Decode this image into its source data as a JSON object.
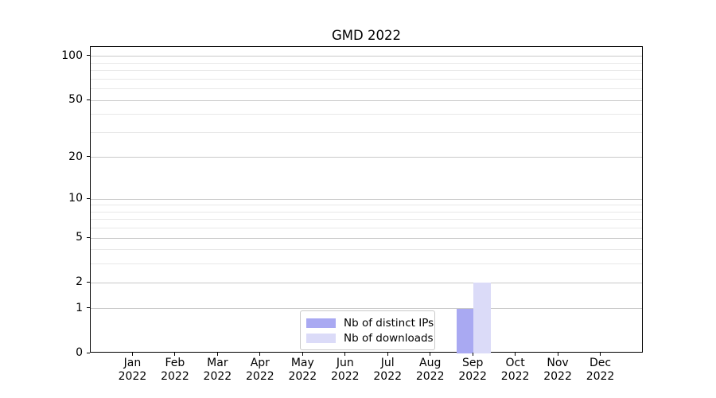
{
  "chart_data": {
    "type": "bar",
    "title": "GMD 2022",
    "categories": [
      "Jan 2022",
      "Feb 2022",
      "Mar 2022",
      "Apr 2022",
      "May 2022",
      "Jun 2022",
      "Jul 2022",
      "Aug 2022",
      "Sep 2022",
      "Oct 2022",
      "Nov 2022",
      "Dec 2022"
    ],
    "series": [
      {
        "name": "Nb of distinct IPs",
        "color": "#a9a9f2",
        "values": [
          0,
          0,
          0,
          0,
          0,
          0,
          0,
          0,
          1,
          0,
          0,
          0
        ]
      },
      {
        "name": "Nb of downloads",
        "color": "#dbdbf8",
        "values": [
          0,
          0,
          0,
          0,
          0,
          0,
          0,
          0,
          2,
          0,
          0,
          0
        ]
      }
    ],
    "xlabel": "",
    "ylabel": "",
    "yscale": "log1p",
    "ylim": [
      0,
      116
    ],
    "yticks_major": [
      0,
      1,
      2,
      5,
      10,
      20,
      50,
      100
    ],
    "yticks_minor": [
      3,
      4,
      6,
      7,
      8,
      9,
      30,
      40,
      60,
      70,
      80,
      90
    ],
    "grid": true,
    "legend": {
      "position": "lower center",
      "items": [
        "Nb of distinct IPs",
        "Nb of downloads"
      ]
    },
    "colors": {
      "axis": "#000000",
      "grid_major": "#c9c9c9",
      "grid_minor": "#e8e8e8",
      "background": "#ffffff"
    }
  }
}
